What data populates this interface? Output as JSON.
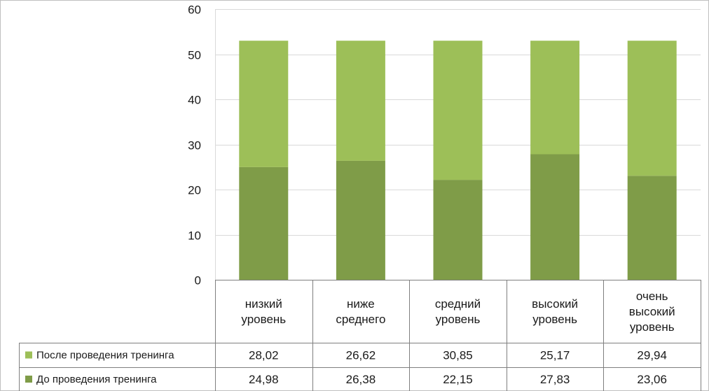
{
  "chart_data": {
    "type": "bar",
    "stacked": true,
    "categories": [
      [
        "низкий",
        "уровень"
      ],
      [
        "ниже",
        "среднего"
      ],
      [
        "средний",
        "уровень"
      ],
      [
        "высокий",
        "уровень"
      ],
      [
        "очень",
        "высокий",
        "уровень"
      ]
    ],
    "series": [
      {
        "name": "До проведения тренинга",
        "color": "#7f9c48",
        "values": [
          24.98,
          26.38,
          22.15,
          27.83,
          23.06
        ],
        "labels": [
          "24,98",
          "26,38",
          "22,15",
          "27,83",
          "23,06"
        ]
      },
      {
        "name": "После проведения тренинга",
        "color": "#9dbf58",
        "values": [
          28.02,
          26.62,
          30.85,
          25.17,
          29.94
        ],
        "labels": [
          "28,02",
          "26,62",
          "30,85",
          "25,17",
          "29,94"
        ]
      }
    ],
    "yticks": [
      "0",
      "10",
      "20",
      "30",
      "40",
      "50",
      "60"
    ],
    "ylim": [
      0,
      60
    ],
    "grid": true,
    "legend": "data-table"
  }
}
